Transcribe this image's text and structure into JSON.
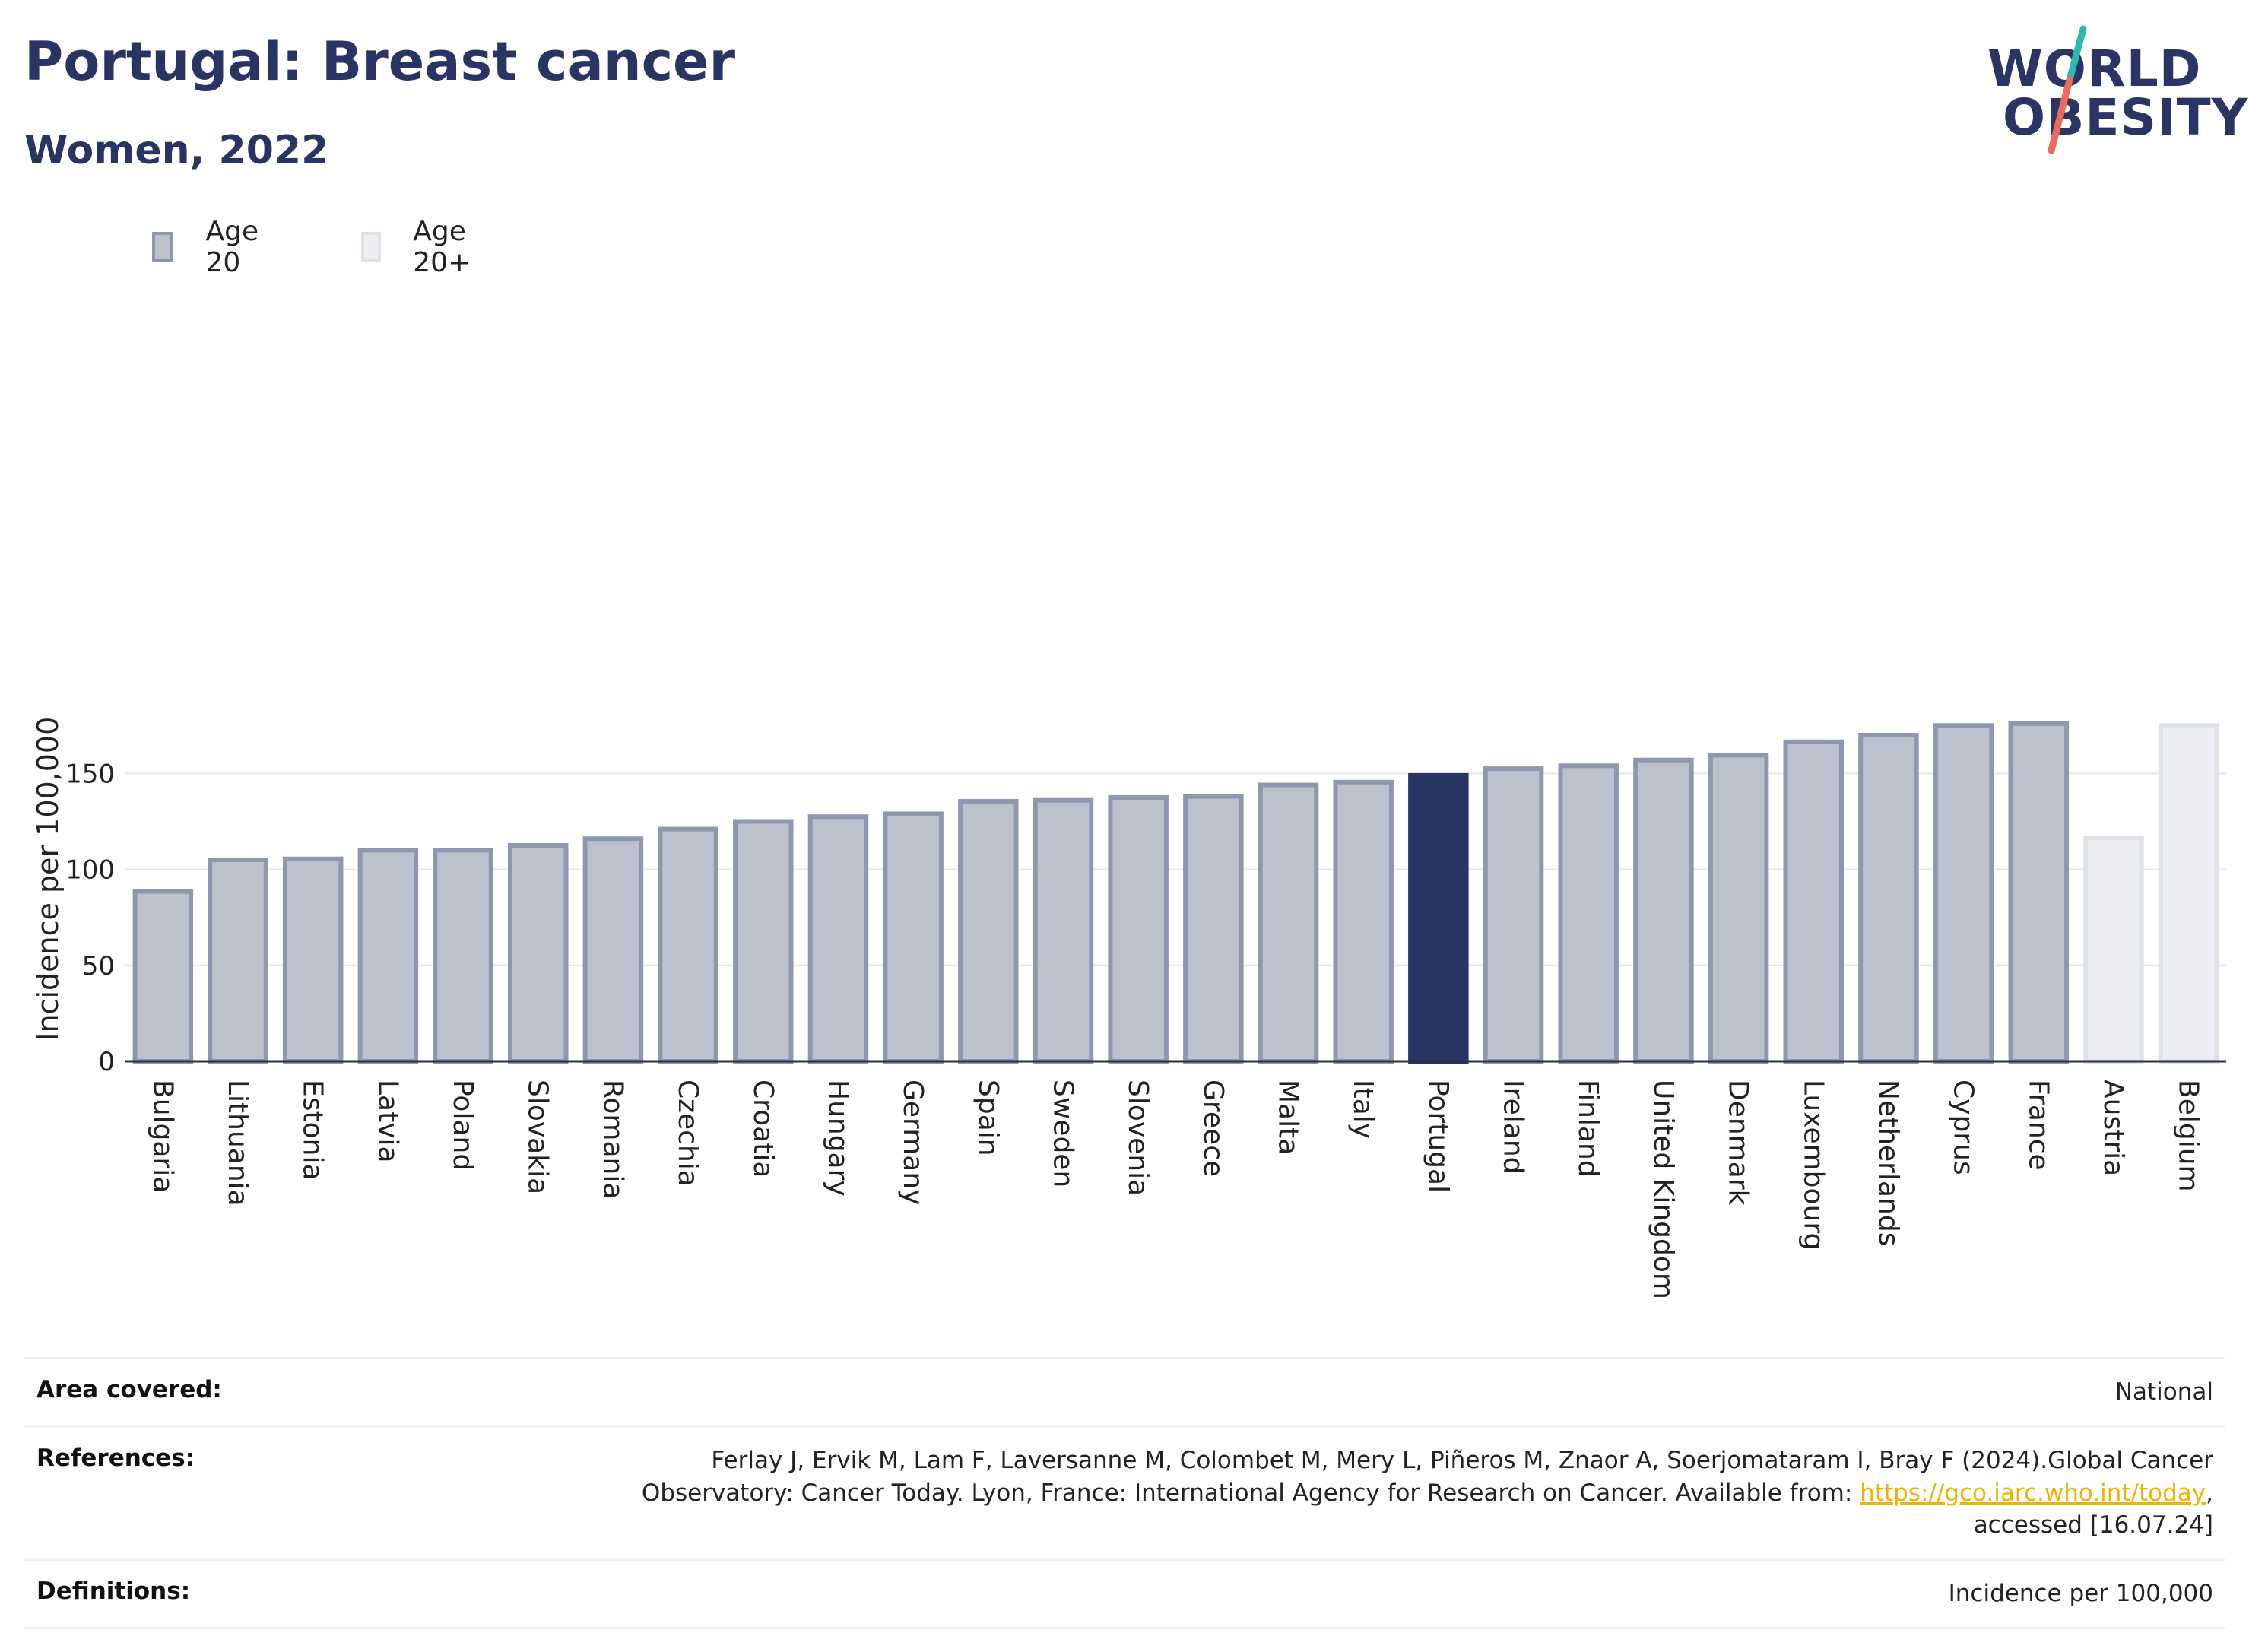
{
  "header": {
    "title": "Portugal: Breast cancer",
    "subtitle": "Women, 2022"
  },
  "logo": {
    "line1": "WORLD",
    "line2": "OBESITY",
    "slash_colors": [
      "#2bbbad",
      "#ee6b5b"
    ]
  },
  "legend": {
    "items": [
      {
        "label": "Age 20",
        "fill": "#bdc1ce",
        "stroke": "#8f97b0"
      },
      {
        "label": "Age 20+",
        "fill": "#eceef2",
        "stroke": "#dfe1e8"
      }
    ]
  },
  "chart_data": {
    "type": "bar",
    "ylabel": "Incidence per 100,000",
    "xlabel": "",
    "ylim": [
      0,
      190
    ],
    "yticks": [
      0,
      50,
      100,
      150
    ],
    "grid": true,
    "legend_position": "top-left",
    "highlight": "Portugal",
    "colors": {
      "age20_fill": "#bdc1ce",
      "age20_stroke": "#8f97b0",
      "age20plus_fill": "#eceef2",
      "age20plus_stroke": "#dfe1e8",
      "highlight_fill": "#283562"
    },
    "categories": [
      "Bulgaria",
      "Lithuania",
      "Estonia",
      "Latvia",
      "Poland",
      "Slovakia",
      "Romania",
      "Czechia",
      "Croatia",
      "Hungary",
      "Germany",
      "Spain",
      "Sweden",
      "Slovenia",
      "Greece",
      "Malta",
      "Italy",
      "Portugal",
      "Ireland",
      "Finland",
      "United Kingdom",
      "Denmark",
      "Luxembourg",
      "Netherlands",
      "Cyprus",
      "France",
      "Austria",
      "Belgium"
    ],
    "series": [
      {
        "name": "Age 20",
        "values": [
          88.5,
          105,
          105.5,
          110,
          110,
          112.5,
          116,
          121,
          125,
          127.5,
          129,
          135.5,
          136,
          137.5,
          138,
          144,
          145.5,
          149,
          152.5,
          154,
          157,
          159.5,
          166.5,
          170,
          175,
          176,
          null,
          null
        ]
      },
      {
        "name": "Age 20+",
        "values": [
          null,
          null,
          null,
          null,
          null,
          null,
          null,
          null,
          null,
          null,
          null,
          null,
          null,
          null,
          null,
          null,
          null,
          null,
          null,
          null,
          null,
          null,
          null,
          null,
          null,
          null,
          116.5,
          175
        ]
      }
    ]
  },
  "footer": {
    "area_label": "Area covered:",
    "area_value": "National",
    "references_label": "References:",
    "references_text": "Ferlay J, Ervik M, Lam F, Laversanne M, Colombet M, Mery L, Piñeros M, Znaor A, Soerjomataram I, Bray F (2024).Global Cancer Observatory: Cancer Today. Lyon, France: International Agency for Research on Cancer. Available from: ",
    "references_link": "https://gco.iarc.who.int/today",
    "references_tail": ", accessed [16.07.24]",
    "definitions_label": "Definitions:",
    "definitions_value": "Incidence per 100,000"
  }
}
